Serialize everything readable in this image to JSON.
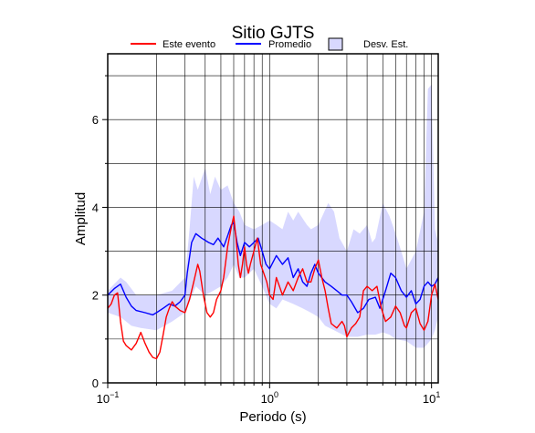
{
  "chart_data": {
    "type": "line",
    "title": "Sitio GJTS",
    "xlabel": "Periodo (s)",
    "ylabel": "Amplitud",
    "x_scale": "log",
    "xlim": [
      0.1,
      11
    ],
    "ylim": [
      0,
      7.5
    ],
    "x_ticks": [
      {
        "value": 0.1,
        "base": "10",
        "exp": "−1"
      },
      {
        "value": 1,
        "base": "10",
        "exp": "0"
      },
      {
        "value": 10,
        "base": "10",
        "exp": "1"
      }
    ],
    "y_ticks": [
      0,
      2,
      4,
      6
    ],
    "grid": true,
    "legend_position": "top",
    "legend": [
      {
        "label": "Este evento",
        "kind": "line",
        "color": "#ff0000"
      },
      {
        "label": "Promedio",
        "kind": "line",
        "color": "#0000ff"
      },
      {
        "label": "Desv. Est.",
        "kind": "box",
        "color": "#d8d8ff"
      }
    ],
    "series": [
      {
        "name": "Este evento",
        "color": "#ff0000",
        "points": [
          [
            0.1,
            1.7
          ],
          [
            0.105,
            1.8
          ],
          [
            0.11,
            2.0
          ],
          [
            0.115,
            2.05
          ],
          [
            0.12,
            1.4
          ],
          [
            0.125,
            0.95
          ],
          [
            0.13,
            0.85
          ],
          [
            0.14,
            0.75
          ],
          [
            0.15,
            0.9
          ],
          [
            0.16,
            1.15
          ],
          [
            0.17,
            0.9
          ],
          [
            0.18,
            0.7
          ],
          [
            0.19,
            0.58
          ],
          [
            0.2,
            0.55
          ],
          [
            0.21,
            0.7
          ],
          [
            0.22,
            1.1
          ],
          [
            0.23,
            1.5
          ],
          [
            0.24,
            1.7
          ],
          [
            0.25,
            1.85
          ],
          [
            0.26,
            1.75
          ],
          [
            0.28,
            1.65
          ],
          [
            0.3,
            1.6
          ],
          [
            0.32,
            1.9
          ],
          [
            0.34,
            2.3
          ],
          [
            0.36,
            2.7
          ],
          [
            0.37,
            2.55
          ],
          [
            0.39,
            2.0
          ],
          [
            0.41,
            1.6
          ],
          [
            0.43,
            1.5
          ],
          [
            0.45,
            1.6
          ],
          [
            0.47,
            1.9
          ],
          [
            0.5,
            2.1
          ],
          [
            0.52,
            2.4
          ],
          [
            0.55,
            3.1
          ],
          [
            0.58,
            3.55
          ],
          [
            0.6,
            3.8
          ],
          [
            0.62,
            3.3
          ],
          [
            0.64,
            2.7
          ],
          [
            0.66,
            2.4
          ],
          [
            0.68,
            2.7
          ],
          [
            0.7,
            3.1
          ],
          [
            0.72,
            2.7
          ],
          [
            0.74,
            2.5
          ],
          [
            0.76,
            2.7
          ],
          [
            0.8,
            3.0
          ],
          [
            0.84,
            3.3
          ],
          [
            0.88,
            2.7
          ],
          [
            0.92,
            2.5
          ],
          [
            0.96,
            2.3
          ],
          [
            1.0,
            2.0
          ],
          [
            1.05,
            1.9
          ],
          [
            1.1,
            2.4
          ],
          [
            1.15,
            2.2
          ],
          [
            1.2,
            2.0
          ],
          [
            1.3,
            2.3
          ],
          [
            1.4,
            2.1
          ],
          [
            1.5,
            2.4
          ],
          [
            1.6,
            2.6
          ],
          [
            1.7,
            2.3
          ],
          [
            1.8,
            2.3
          ],
          [
            1.9,
            2.6
          ],
          [
            2.0,
            2.8
          ],
          [
            2.1,
            2.4
          ],
          [
            2.2,
            2.1
          ],
          [
            2.3,
            1.7
          ],
          [
            2.4,
            1.35
          ],
          [
            2.6,
            1.25
          ],
          [
            2.8,
            1.4
          ],
          [
            2.9,
            1.3
          ],
          [
            3.0,
            1.05
          ],
          [
            3.2,
            1.25
          ],
          [
            3.4,
            1.35
          ],
          [
            3.6,
            1.5
          ],
          [
            3.8,
            2.1
          ],
          [
            4.0,
            2.2
          ],
          [
            4.3,
            2.1
          ],
          [
            4.6,
            2.2
          ],
          [
            4.9,
            1.7
          ],
          [
            5.2,
            1.4
          ],
          [
            5.6,
            1.5
          ],
          [
            6.0,
            1.75
          ],
          [
            6.4,
            1.6
          ],
          [
            6.8,
            1.3
          ],
          [
            7.0,
            1.25
          ],
          [
            7.5,
            1.6
          ],
          [
            8.0,
            1.7
          ],
          [
            8.5,
            1.35
          ],
          [
            9.0,
            1.2
          ],
          [
            9.5,
            1.4
          ],
          [
            10.0,
            2.0
          ],
          [
            10.5,
            2.25
          ],
          [
            11.0,
            1.9
          ]
        ]
      },
      {
        "name": "Promedio",
        "color": "#0000ff",
        "points": [
          [
            0.1,
            2.0
          ],
          [
            0.11,
            2.15
          ],
          [
            0.12,
            2.25
          ],
          [
            0.13,
            1.95
          ],
          [
            0.14,
            1.75
          ],
          [
            0.15,
            1.65
          ],
          [
            0.17,
            1.6
          ],
          [
            0.19,
            1.55
          ],
          [
            0.2,
            1.6
          ],
          [
            0.22,
            1.7
          ],
          [
            0.24,
            1.8
          ],
          [
            0.26,
            1.75
          ],
          [
            0.28,
            1.85
          ],
          [
            0.3,
            2.0
          ],
          [
            0.31,
            2.5
          ],
          [
            0.33,
            3.2
          ],
          [
            0.35,
            3.4
          ],
          [
            0.38,
            3.3
          ],
          [
            0.42,
            3.2
          ],
          [
            0.45,
            3.15
          ],
          [
            0.48,
            3.3
          ],
          [
            0.52,
            3.1
          ],
          [
            0.55,
            3.35
          ],
          [
            0.58,
            3.6
          ],
          [
            0.6,
            3.65
          ],
          [
            0.63,
            3.2
          ],
          [
            0.66,
            2.9
          ],
          [
            0.7,
            3.2
          ],
          [
            0.75,
            3.1
          ],
          [
            0.8,
            3.2
          ],
          [
            0.85,
            3.3
          ],
          [
            0.9,
            3.0
          ],
          [
            0.95,
            2.7
          ],
          [
            1.0,
            2.6
          ],
          [
            1.1,
            2.9
          ],
          [
            1.2,
            2.7
          ],
          [
            1.3,
            2.85
          ],
          [
            1.4,
            2.4
          ],
          [
            1.5,
            2.6
          ],
          [
            1.6,
            2.3
          ],
          [
            1.7,
            2.2
          ],
          [
            1.8,
            2.5
          ],
          [
            1.9,
            2.7
          ],
          [
            2.0,
            2.5
          ],
          [
            2.2,
            2.3
          ],
          [
            2.4,
            2.2
          ],
          [
            2.6,
            2.1
          ],
          [
            2.8,
            2.0
          ],
          [
            3.0,
            2.0
          ],
          [
            3.2,
            1.85
          ],
          [
            3.5,
            1.6
          ],
          [
            3.8,
            1.7
          ],
          [
            4.1,
            1.9
          ],
          [
            4.5,
            1.95
          ],
          [
            4.8,
            1.7
          ],
          [
            5.2,
            2.1
          ],
          [
            5.6,
            2.5
          ],
          [
            6.0,
            2.4
          ],
          [
            6.5,
            2.1
          ],
          [
            7.0,
            1.95
          ],
          [
            7.5,
            2.1
          ],
          [
            8.0,
            1.8
          ],
          [
            8.5,
            1.9
          ],
          [
            9.0,
            2.2
          ],
          [
            9.5,
            2.3
          ],
          [
            10.0,
            2.2
          ],
          [
            10.5,
            2.25
          ],
          [
            11.0,
            2.4
          ]
        ]
      }
    ],
    "band": {
      "name": "Desv. Est.",
      "color": "#d8d8ff",
      "upper": [
        [
          0.1,
          2.1
        ],
        [
          0.12,
          2.4
        ],
        [
          0.13,
          2.3
        ],
        [
          0.15,
          2.0
        ],
        [
          0.2,
          2.0
        ],
        [
          0.25,
          2.1
        ],
        [
          0.3,
          2.4
        ],
        [
          0.32,
          3.5
        ],
        [
          0.34,
          4.7
        ],
        [
          0.36,
          4.4
        ],
        [
          0.4,
          4.9
        ],
        [
          0.43,
          4.3
        ],
        [
          0.46,
          4.7
        ],
        [
          0.5,
          4.4
        ],
        [
          0.55,
          4.5
        ],
        [
          0.6,
          4.1
        ],
        [
          0.65,
          3.9
        ],
        [
          0.7,
          3.6
        ],
        [
          0.8,
          3.5
        ],
        [
          0.9,
          3.6
        ],
        [
          1.0,
          3.7
        ],
        [
          1.1,
          3.6
        ],
        [
          1.2,
          3.5
        ],
        [
          1.3,
          3.9
        ],
        [
          1.4,
          3.7
        ],
        [
          1.5,
          3.9
        ],
        [
          1.7,
          3.6
        ],
        [
          1.8,
          3.5
        ],
        [
          2.0,
          3.6
        ],
        [
          2.3,
          4.1
        ],
        [
          2.5,
          3.9
        ],
        [
          2.7,
          3.3
        ],
        [
          3.0,
          3.0
        ],
        [
          3.3,
          3.5
        ],
        [
          3.6,
          3.4
        ],
        [
          4.0,
          3.6
        ],
        [
          4.3,
          3.2
        ],
        [
          4.5,
          3.3
        ],
        [
          5.0,
          4.1
        ],
        [
          5.5,
          3.8
        ],
        [
          6.0,
          3.4
        ],
        [
          6.5,
          3.0
        ],
        [
          7.0,
          2.6
        ],
        [
          8.0,
          3.0
        ],
        [
          9.0,
          3.9
        ],
        [
          9.5,
          6.7
        ],
        [
          10.0,
          6.8
        ],
        [
          10.5,
          3.5
        ],
        [
          11.0,
          3.2
        ]
      ],
      "lower": [
        [
          0.1,
          1.6
        ],
        [
          0.12,
          1.5
        ],
        [
          0.14,
          1.3
        ],
        [
          0.16,
          1.25
        ],
        [
          0.2,
          1.2
        ],
        [
          0.25,
          1.4
        ],
        [
          0.3,
          1.6
        ],
        [
          0.35,
          2.2
        ],
        [
          0.4,
          2.0
        ],
        [
          0.45,
          2.1
        ],
        [
          0.5,
          2.2
        ],
        [
          0.55,
          2.4
        ],
        [
          0.6,
          2.7
        ],
        [
          0.65,
          2.4
        ],
        [
          0.7,
          2.4
        ],
        [
          0.8,
          2.6
        ],
        [
          0.9,
          2.2
        ],
        [
          1.0,
          1.8
        ],
        [
          1.1,
          1.7
        ],
        [
          1.2,
          1.9
        ],
        [
          1.4,
          1.8
        ],
        [
          1.6,
          1.7
        ],
        [
          1.8,
          1.6
        ],
        [
          2.0,
          1.5
        ],
        [
          2.2,
          1.3
        ],
        [
          2.5,
          1.2
        ],
        [
          3.0,
          1.05
        ],
        [
          3.5,
          1.05
        ],
        [
          4.0,
          1.1
        ],
        [
          4.5,
          1.1
        ],
        [
          5.0,
          1.15
        ],
        [
          5.5,
          1.1
        ],
        [
          6.0,
          1.0
        ],
        [
          7.0,
          0.95
        ],
        [
          8.0,
          0.8
        ],
        [
          9.0,
          0.8
        ],
        [
          10.0,
          1.0
        ],
        [
          10.5,
          1.2
        ],
        [
          11.0,
          1.5
        ]
      ]
    }
  }
}
